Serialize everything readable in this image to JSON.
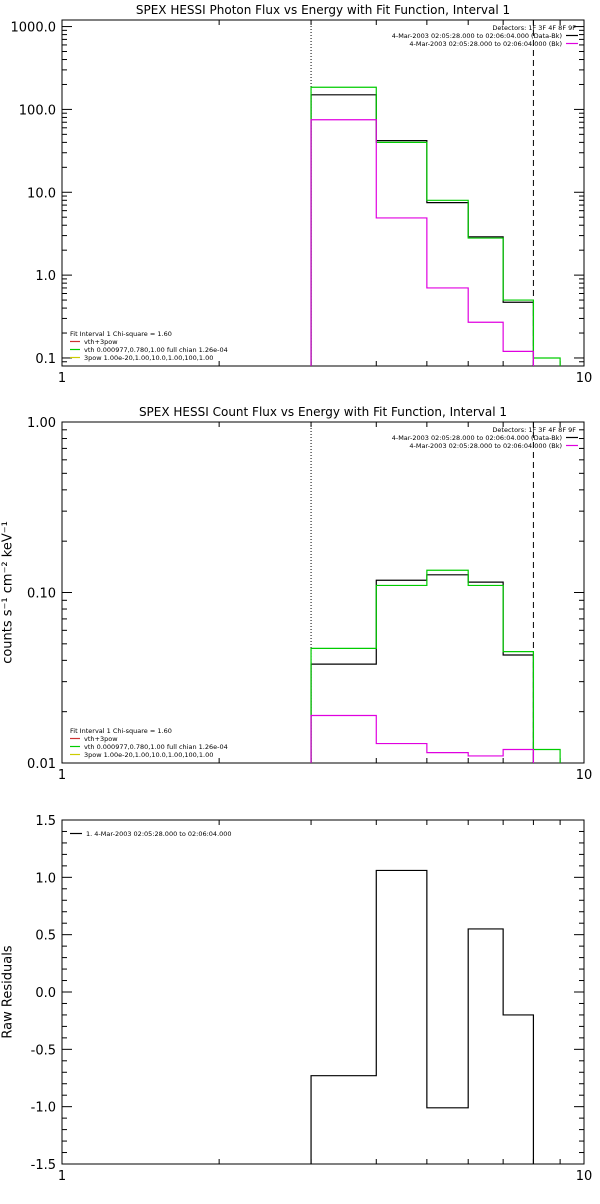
{
  "colors": {
    "background": "#ffffff",
    "axes": "#000000",
    "data": "#000000",
    "model": "#00cc00",
    "bk": "#e000e0",
    "vth_comp": "#cc3333",
    "thick_comp": "#00cc00",
    "pow_comp": "#cccc00"
  },
  "chart_data": [
    {
      "type": "line",
      "title": "SPEX HESSI Photon Flux vs Energy with Fit Function, Interval 1",
      "xlabel": "",
      "ylabel": "",
      "xscale": "log",
      "yscale": "log",
      "xlim": [
        1,
        10
      ],
      "ylim": [
        0.08,
        1200
      ],
      "xticks": [
        {
          "v": 1,
          "label": "1"
        },
        {
          "v": 10,
          "label": "10"
        }
      ],
      "yticks": [
        {
          "v": 0.1,
          "label": "0.1"
        },
        {
          "v": 1,
          "label": "1.0"
        },
        {
          "v": 10,
          "label": "10.0"
        },
        {
          "v": 100,
          "label": "100.0"
        },
        {
          "v": 1000,
          "label": "1000.0"
        }
      ],
      "vlines": [
        {
          "x": 3,
          "style": "dotted"
        },
        {
          "x": 8,
          "style": "dashed"
        }
      ],
      "legend_top_right": [
        {
          "text": "Detectors: 1F 3F 4F 8F 9F",
          "color": ""
        },
        {
          "text": "4-Mar-2003 02:05:28.000 to 02:06:04.000 (Data-Bk)",
          "color": "#000000"
        },
        {
          "text": "4-Mar-2003 02:05:28.000 to 02:06:04.000 (Bk)",
          "color": "#e000e0"
        }
      ],
      "legend_bottom_left": [
        {
          "text": "Fit Interval 1    Chi-square = 1.60",
          "color": ""
        },
        {
          "text": "vth+3pow",
          "color": "#cc3333"
        },
        {
          "text": "vth 0.000977,0.780,1.00  full chian 1.26e-04",
          "color": "#00cc00"
        },
        {
          "text": "3pow 1.00e-20,1.00,10.0,1.00,100,1.00",
          "color": "#cccc00"
        }
      ],
      "series": [
        {
          "color": "#000000",
          "edges": [
            3,
            4,
            5,
            6,
            7,
            8
          ],
          "values": [
            150,
            42,
            7.5,
            2.9,
            0.47
          ]
        },
        {
          "color": "#00cc00",
          "edges": [
            3,
            4,
            5,
            6,
            7,
            8,
            9
          ],
          "values": [
            185,
            40,
            8.0,
            2.8,
            0.5,
            0.1
          ]
        },
        {
          "color": "#e000e0",
          "edges": [
            3,
            4,
            5,
            6,
            7,
            8
          ],
          "values": [
            75,
            4.9,
            0.7,
            0.27,
            0.12
          ]
        }
      ]
    },
    {
      "type": "line",
      "title": "SPEX HESSI Count Flux vs Energy with Fit Function, Interval 1",
      "xlabel": "",
      "ylabel": "counts s⁻¹ cm⁻² keV⁻¹",
      "xscale": "log",
      "yscale": "log",
      "xlim": [
        1,
        10
      ],
      "ylim": [
        0.01,
        1.0
      ],
      "xticks": [
        {
          "v": 1,
          "label": "1"
        },
        {
          "v": 10,
          "label": "10"
        }
      ],
      "yticks": [
        {
          "v": 0.01,
          "label": "0.01"
        },
        {
          "v": 0.1,
          "label": "0.10"
        },
        {
          "v": 1,
          "label": "1.00"
        }
      ],
      "vlines": [
        {
          "x": 3,
          "style": "dotted"
        },
        {
          "x": 8,
          "style": "dashed"
        }
      ],
      "legend_top_right": [
        {
          "text": "Detectors: 1F 3F 4F 8F 9F",
          "color": ""
        },
        {
          "text": "4-Mar-2003 02:05:28.000 to 02:06:04.000 (Data-Bk)",
          "color": "#000000"
        },
        {
          "text": "4-Mar-2003 02:05:28.000 to 02:06:04.000 (Bk)",
          "color": "#e000e0"
        }
      ],
      "legend_bottom_left": [
        {
          "text": "Fit Interval 1    Chi-square = 1.60",
          "color": ""
        },
        {
          "text": "vth+3pow",
          "color": "#cc3333"
        },
        {
          "text": "vth 0.000977,0.780,1.00  full chian 1.26e-04",
          "color": "#00cc00"
        },
        {
          "text": "3pow 1.00e-20,1.00,10.0,1.00,100,1.00",
          "color": "#cccc00"
        }
      ],
      "series": [
        {
          "color": "#000000",
          "edges": [
            3,
            4,
            5,
            6,
            7,
            8
          ],
          "values": [
            0.038,
            0.118,
            0.127,
            0.115,
            0.043
          ]
        },
        {
          "color": "#00cc00",
          "edges": [
            3,
            4,
            5,
            6,
            7,
            8,
            9
          ],
          "values": [
            0.047,
            0.11,
            0.135,
            0.11,
            0.045,
            0.012
          ]
        },
        {
          "color": "#e000e0",
          "edges": [
            3,
            4,
            5,
            6,
            7,
            8
          ],
          "values": [
            0.019,
            0.013,
            0.0115,
            0.011,
            0.012
          ]
        }
      ]
    },
    {
      "type": "line",
      "title": "",
      "xlabel": "",
      "ylabel": "Raw Residuals",
      "xscale": "log",
      "yscale": "linear",
      "xlim": [
        1,
        10
      ],
      "ylim": [
        -1.5,
        1.5
      ],
      "xticks": [
        {
          "v": 1,
          "label": "1"
        },
        {
          "v": 10,
          "label": "10"
        }
      ],
      "yticks": [
        {
          "v": -1.5,
          "label": "-1.5"
        },
        {
          "v": -1.0,
          "label": "-1.0"
        },
        {
          "v": -0.5,
          "label": "-0.5"
        },
        {
          "v": 0.0,
          "label": "0.0"
        },
        {
          "v": 0.5,
          "label": "0.5"
        },
        {
          "v": 1.0,
          "label": "1.0"
        },
        {
          "v": 1.5,
          "label": "1.5"
        }
      ],
      "vlines": [],
      "legend_top_right": [],
      "legend_bottom_left": [],
      "legend_top_left": [
        {
          "text": "1.  4-Mar-2003 02:05:28.000 to 02:06:04.000",
          "color": "#000000"
        }
      ],
      "series": [
        {
          "color": "#000000",
          "edges": [
            3,
            4,
            5,
            6,
            7,
            8
          ],
          "values": [
            -0.73,
            1.06,
            -1.01,
            0.55,
            -0.2
          ]
        }
      ]
    }
  ]
}
